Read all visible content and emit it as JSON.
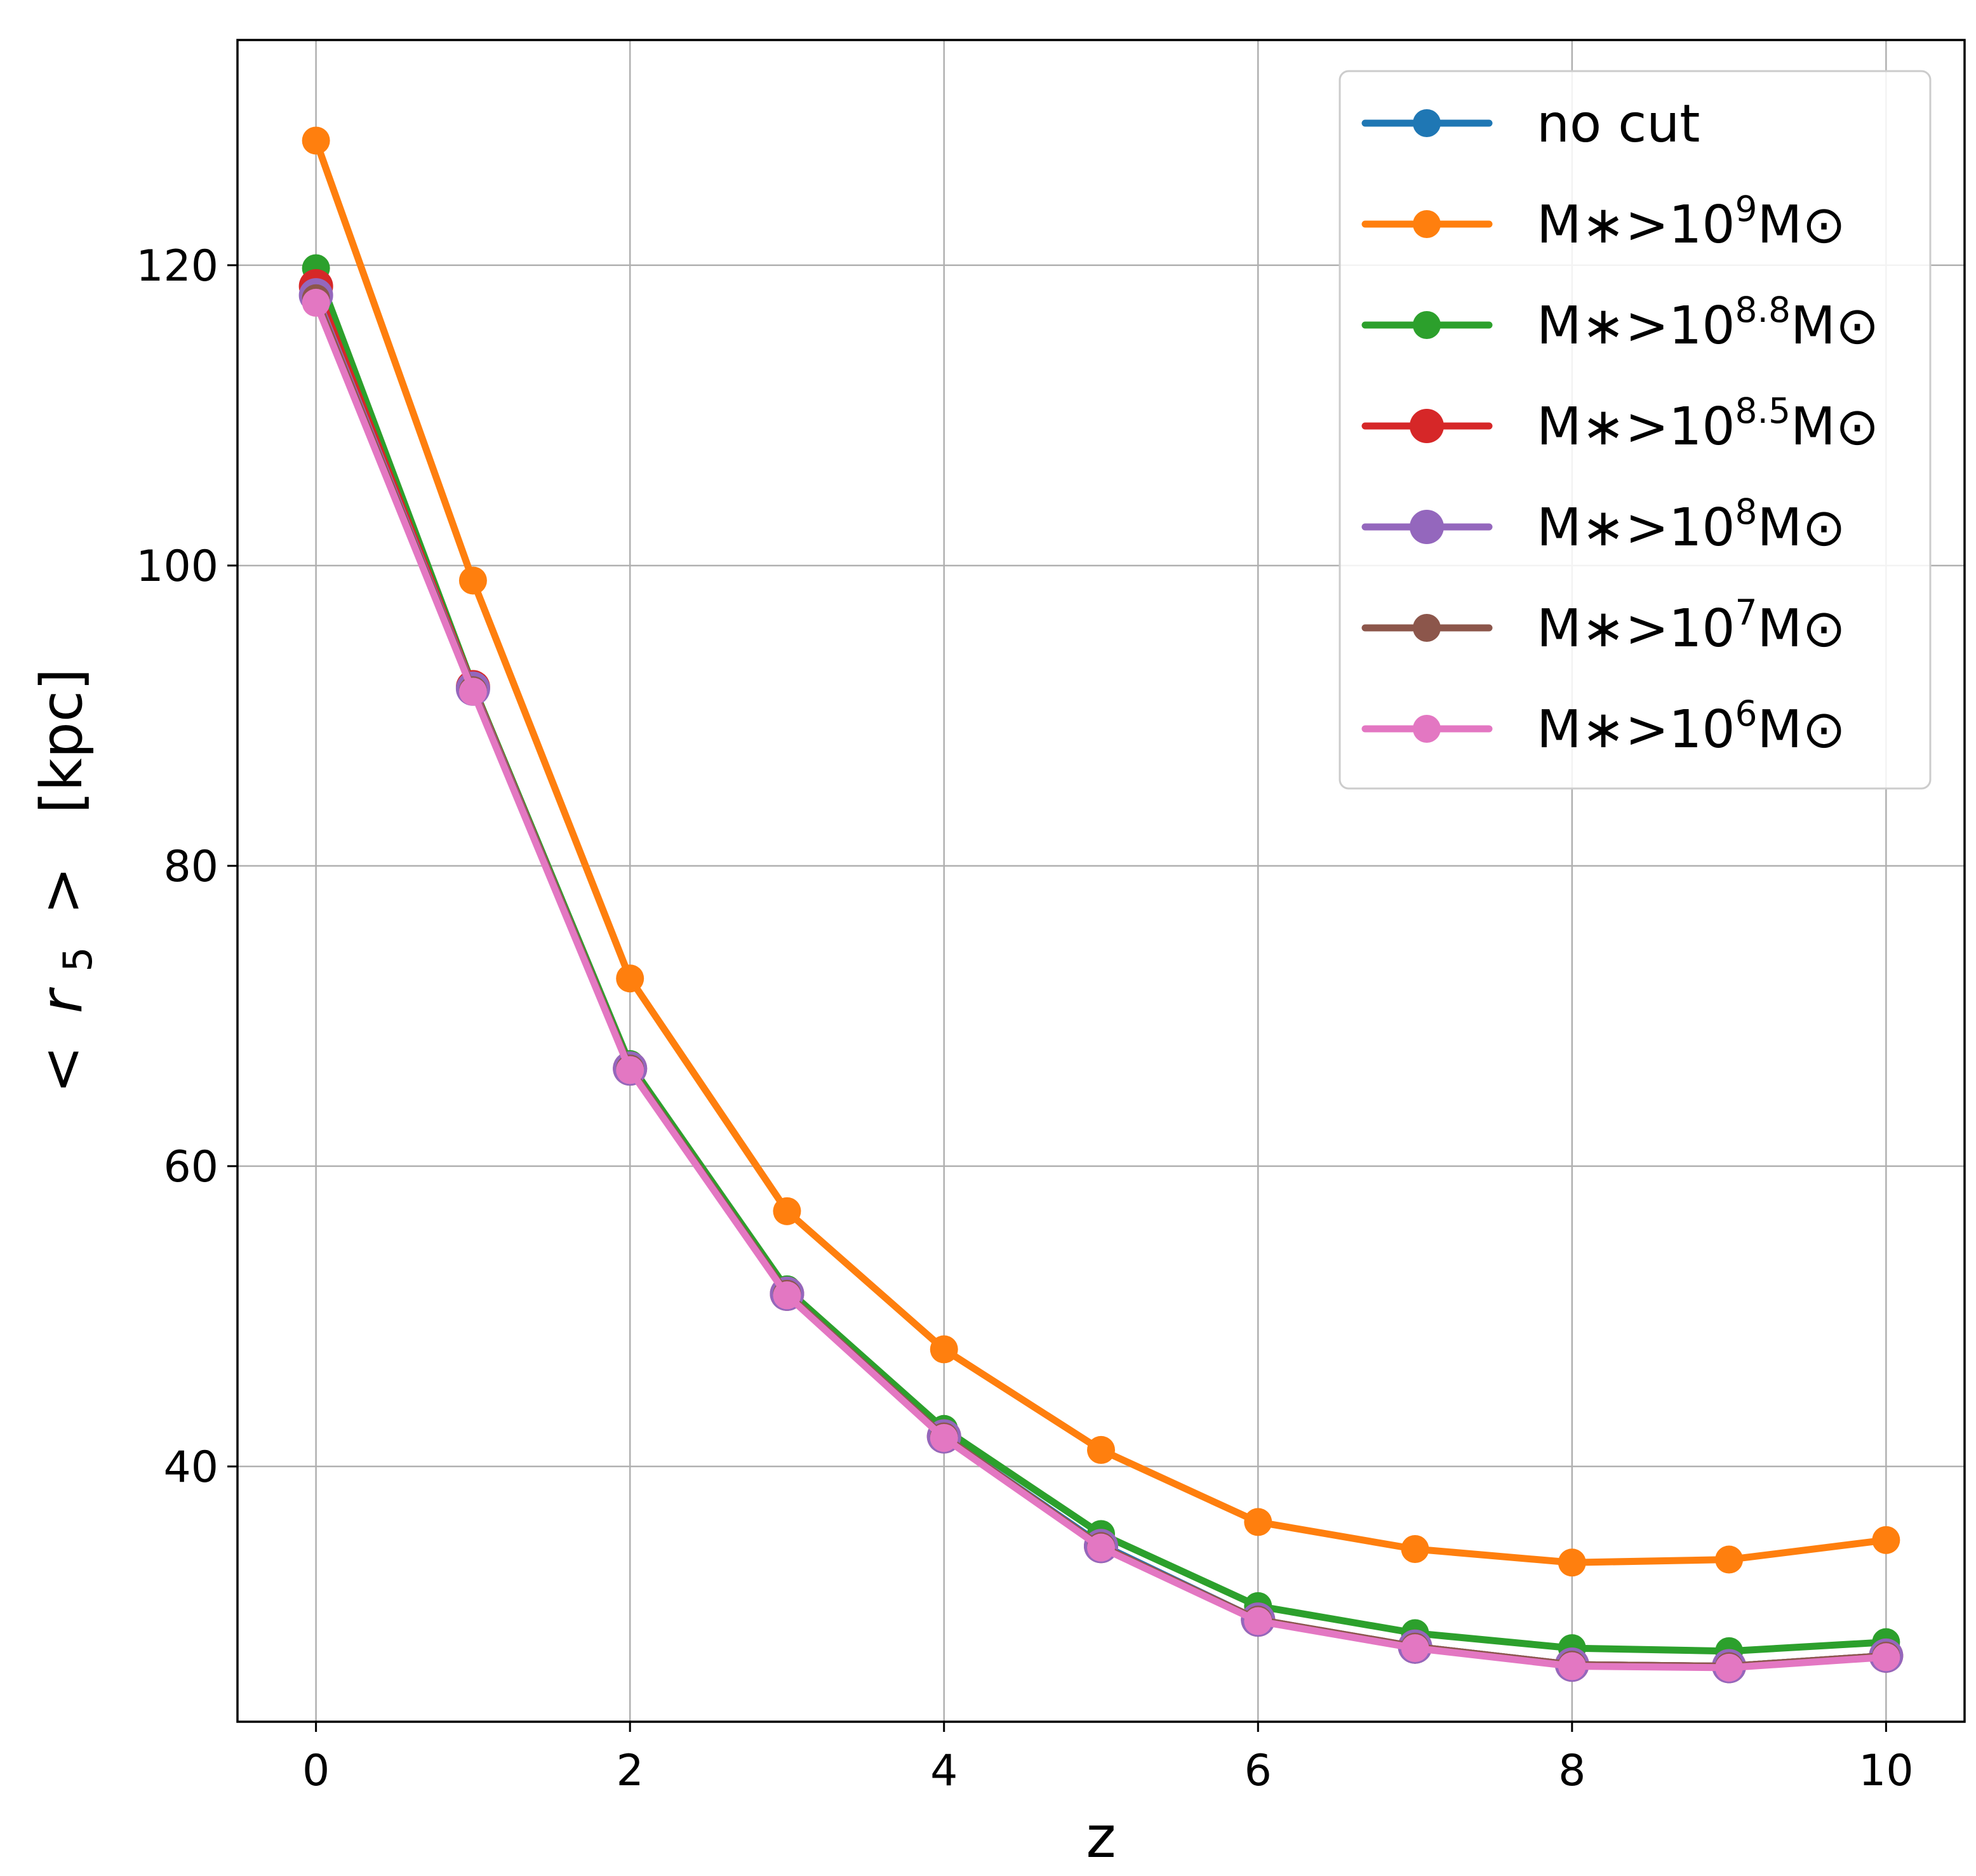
{
  "chart_data": {
    "type": "line",
    "title": "",
    "xlabel": "z",
    "ylabel": {
      "open": "<",
      "var": "r",
      "sub": "5",
      "close": ">",
      "unit": "[kpc]"
    },
    "grid": true,
    "legend_position": "top-right",
    "xlim": [
      -0.5,
      10.5
    ],
    "ylim": [
      23,
      135
    ],
    "x_ticks": [
      0,
      2,
      4,
      6,
      8,
      10
    ],
    "y_ticks": [
      40,
      60,
      80,
      100,
      120
    ],
    "x": [
      0,
      1,
      2,
      3,
      4,
      5,
      6,
      7,
      8,
      9,
      10
    ],
    "series": [
      {
        "name": "no cut",
        "label": {
          "base": "no cut"
        },
        "color": "#1f77b4",
        "marker": "normal",
        "values": [
          118.5,
          91.8,
          66.6,
          51.5,
          42.0,
          34.8,
          29.8,
          28.0,
          26.8,
          26.7,
          27.4
        ]
      },
      {
        "name": "M*>10^9 M☉",
        "label": {
          "base": "M∗>10",
          "exp": "9",
          "tail": "M⊙"
        },
        "color": "#ff7f0e",
        "marker": "normal",
        "values": [
          128.3,
          99.0,
          72.5,
          57.0,
          47.8,
          41.1,
          36.3,
          34.5,
          33.6,
          33.8,
          35.1
        ]
      },
      {
        "name": "M*>10^8.8 M☉",
        "label": {
          "base": "M∗>10",
          "exp": "8.8",
          "tail": "M⊙"
        },
        "color": "#2ca02c",
        "marker": "normal",
        "values": [
          119.8,
          92.0,
          66.8,
          51.8,
          42.5,
          35.5,
          30.7,
          28.9,
          27.9,
          27.7,
          28.3
        ]
      },
      {
        "name": "M*>10^8.5 M☉",
        "label": {
          "base": "M∗>10",
          "exp": "8.5",
          "tail": "M⊙"
        },
        "color": "#d62728",
        "marker": "large",
        "values": [
          118.6,
          91.9,
          66.5,
          51.5,
          42.0,
          34.7,
          29.8,
          28.0,
          26.8,
          26.7,
          27.4
        ]
      },
      {
        "name": "M*>10^8 M☉",
        "label": {
          "base": "M∗>10",
          "exp": "8",
          "tail": "M⊙"
        },
        "color": "#9467bd",
        "marker": "large",
        "values": [
          118.0,
          91.8,
          66.5,
          51.5,
          42.0,
          34.7,
          29.8,
          28.0,
          26.8,
          26.7,
          27.4
        ]
      },
      {
        "name": "M*>10^7 M☉",
        "label": {
          "base": "M∗>10",
          "exp": "7",
          "tail": "M⊙"
        },
        "color": "#8c564b",
        "marker": "normal",
        "values": [
          117.8,
          91.7,
          66.5,
          51.5,
          42.0,
          34.7,
          29.8,
          28.0,
          26.8,
          26.7,
          27.4
        ]
      },
      {
        "name": "M*>10^6 M☉",
        "label": {
          "base": "M∗>10",
          "exp": "6",
          "tail": "M⊙"
        },
        "color": "#e377c2",
        "marker": "normal",
        "values": [
          117.5,
          91.6,
          66.4,
          51.4,
          41.9,
          34.6,
          29.7,
          27.9,
          26.7,
          26.6,
          27.3
        ]
      }
    ]
  }
}
